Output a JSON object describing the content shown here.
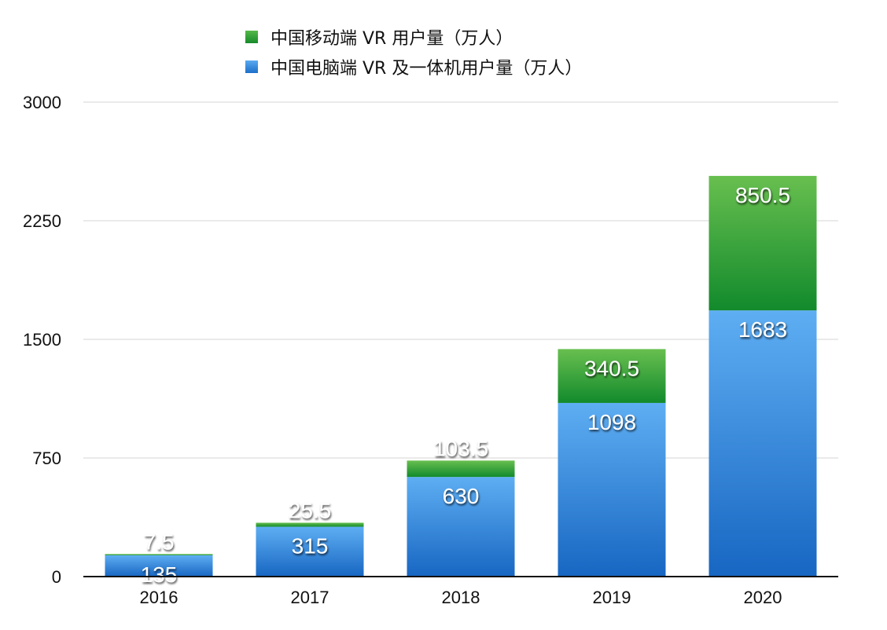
{
  "chart_data": {
    "type": "bar",
    "stacked": true,
    "categories": [
      "2016",
      "2017",
      "2018",
      "2019",
      "2020"
    ],
    "series": [
      {
        "name": "中国电脑端 VR 及一体机用户量（万人）",
        "values": [
          135,
          315,
          630,
          1098,
          1683
        ],
        "color": "#2f86dc"
      },
      {
        "name": "中国移动端 VR 用户量（万人）",
        "values": [
          7.5,
          25.5,
          103.5,
          340.5,
          850.5
        ],
        "color": "#2e9e36"
      }
    ],
    "ylim": [
      0,
      3000
    ],
    "yticks": [
      0,
      750,
      1500,
      2250,
      3000
    ],
    "grid": true,
    "legend": "top-center",
    "title": "",
    "xlabel": "",
    "ylabel": ""
  }
}
